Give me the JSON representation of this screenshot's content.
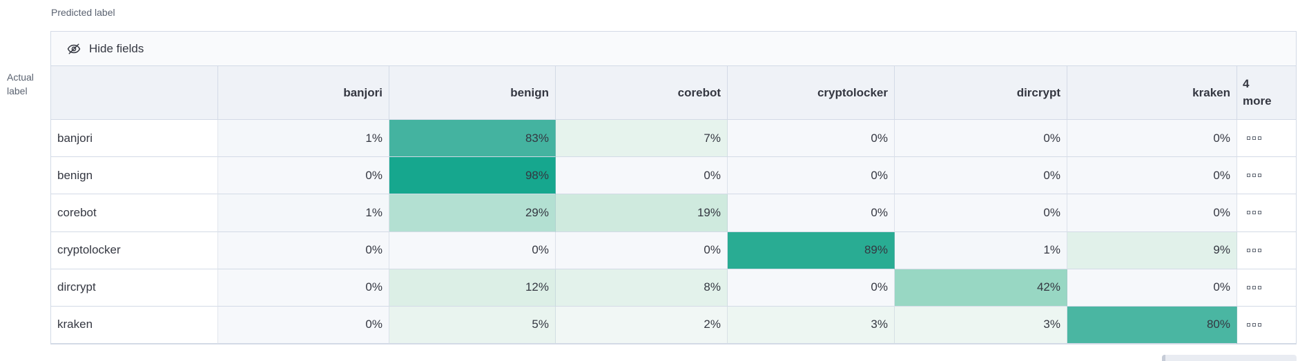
{
  "labels": {
    "predicted": "Predicted label",
    "actual_line1": "Actual",
    "actual_line2": "label"
  },
  "toolbar": {
    "hide_fields_label": "Hide fields"
  },
  "more_column": {
    "line1": "4",
    "line2": "more"
  },
  "chart_data": {
    "type": "heatmap",
    "columns": [
      "banjori",
      "benign",
      "corebot",
      "cryptolocker",
      "dircrypt",
      "kraken"
    ],
    "rows": [
      "banjori",
      "benign",
      "corebot",
      "cryptolocker",
      "dircrypt",
      "kraken"
    ],
    "values": [
      [
        "1%",
        "83%",
        "7%",
        "0%",
        "0%",
        "0%"
      ],
      [
        "0%",
        "98%",
        "0%",
        "0%",
        "0%",
        "0%"
      ],
      [
        "1%",
        "29%",
        "19%",
        "0%",
        "0%",
        "0%"
      ],
      [
        "0%",
        "0%",
        "0%",
        "89%",
        "1%",
        "9%"
      ],
      [
        "0%",
        "12%",
        "8%",
        "0%",
        "42%",
        "0%"
      ],
      [
        "0%",
        "5%",
        "2%",
        "3%",
        "3%",
        "80%"
      ]
    ],
    "color_scale": {
      "0%": "#f6f8fb",
      "1%": "#f4f7fa",
      "2%": "#f1f7f5",
      "3%": "#edf6f2",
      "5%": "#e9f4ef",
      "7%": "#e6f3ed",
      "8%": "#e3f2eb",
      "9%": "#e1f1ea",
      "12%": "#dcefe6",
      "19%": "#cfeade",
      "29%": "#b3e0d2",
      "42%": "#98d7c3",
      "80%": "#4ab6a2",
      "83%": "#44b3a0",
      "89%": "#29ac93",
      "98%": "#16a78e"
    },
    "accent_color": "#54b399",
    "legend_position": "none",
    "grid": true
  }
}
